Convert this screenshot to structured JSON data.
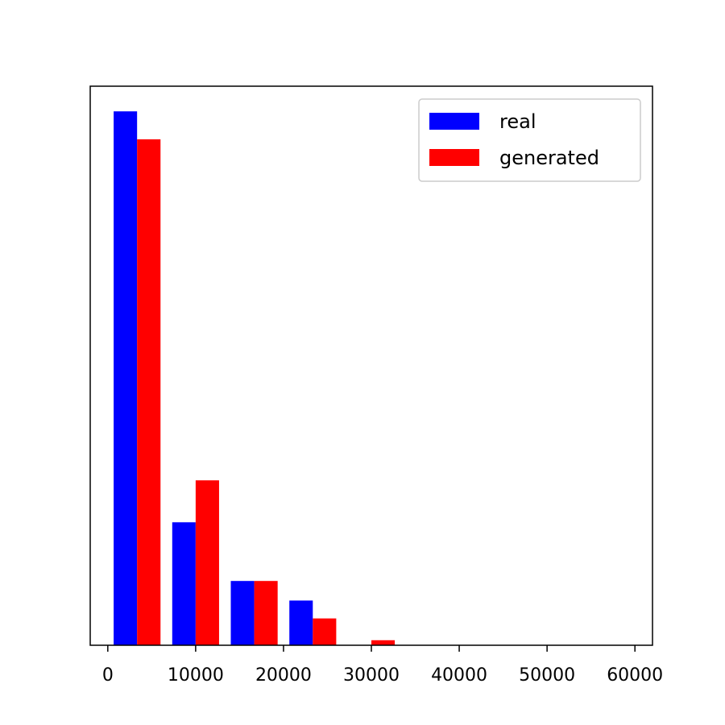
{
  "chart_data": {
    "type": "bar",
    "bin_edges": [
      0,
      6667,
      13333,
      20000,
      26667,
      33333,
      40000,
      46667,
      53333,
      60000
    ],
    "series": [
      {
        "name": "real",
        "color": "#0000ff",
        "values": [
          0.955,
          0.22,
          0.115,
          0.08,
          0.0,
          0.0,
          0.0,
          0.0,
          0.0
        ]
      },
      {
        "name": "generated",
        "color": "#ff0000",
        "values": [
          0.905,
          0.295,
          0.115,
          0.048,
          0.009,
          0.0,
          0.0,
          0.0,
          0.0
        ]
      }
    ],
    "xlim": [
      -2000,
      62000
    ],
    "ylim": [
      0,
      1.0
    ],
    "x_ticks": [
      0,
      10000,
      20000,
      30000,
      40000,
      50000,
      60000
    ],
    "x_tick_labels": [
      "0",
      "10000",
      "20000",
      "30000",
      "40000",
      "50000",
      "60000"
    ],
    "show_y_ticks": false,
    "grid": false,
    "legend": {
      "placement": "upper right",
      "entries": [
        "real",
        "generated"
      ]
    },
    "title": "",
    "xlabel": "",
    "ylabel": ""
  }
}
